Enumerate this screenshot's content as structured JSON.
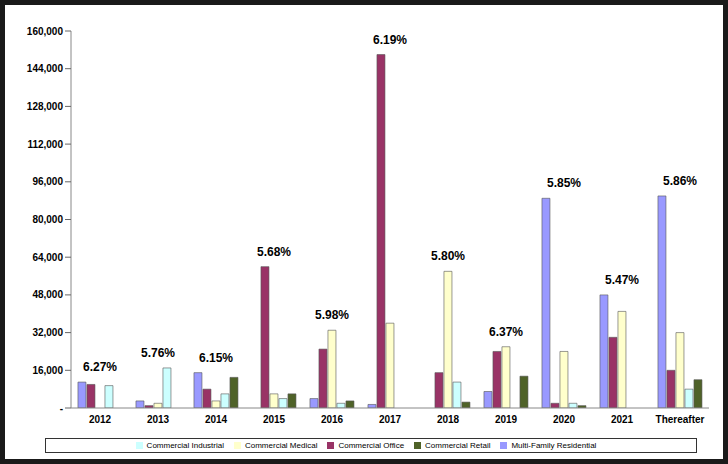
{
  "chart_data": {
    "type": "bar",
    "categories": [
      "2012",
      "2013",
      "2014",
      "2015",
      "2016",
      "2017",
      "2018",
      "2019",
      "2020",
      "2021",
      "Thereafter"
    ],
    "series": [
      {
        "name": "Multi-Family Residential",
        "color": "#9999ff",
        "values": [
          11000,
          3000,
          15000,
          0,
          4000,
          1500,
          0,
          7000,
          89000,
          48000,
          90000
        ]
      },
      {
        "name": "Commercial Office",
        "color": "#993366",
        "values": [
          10000,
          1000,
          8000,
          60000,
          25000,
          150000,
          15000,
          24000,
          2000,
          30000,
          16000
        ]
      },
      {
        "name": "Commercial Medical",
        "color": "#ffffcc",
        "values": [
          0,
          2000,
          3000,
          6000,
          33000,
          36000,
          58000,
          26000,
          24000,
          41000,
          32000
        ]
      },
      {
        "name": "Commercial Industrial",
        "color": "#ccffff",
        "values": [
          9500,
          17000,
          6000,
          4000,
          2000,
          0,
          11000,
          0,
          2000,
          0,
          8000
        ]
      },
      {
        "name": "Commercial Retail",
        "color": "#4f6228",
        "values": [
          0,
          0,
          13000,
          6000,
          3000,
          0,
          2500,
          13500,
          1000,
          0,
          12000
        ]
      }
    ],
    "annotations": [
      "6.27%",
      "5.76%",
      "6.15%",
      "5.68%",
      "5.98%",
      "6.19%",
      "5.80%",
      "6.37%",
      "5.85%",
      "5.47%",
      "5.86%"
    ],
    "ylim": [
      0,
      160000
    ],
    "yticks": [
      {
        "value": 0,
        "label": "-"
      },
      {
        "value": 16000,
        "label": "16,000"
      },
      {
        "value": 32000,
        "label": "32,000"
      },
      {
        "value": 48000,
        "label": "48,000"
      },
      {
        "value": 64000,
        "label": "64,000"
      },
      {
        "value": 80000,
        "label": "80,000"
      },
      {
        "value": 96000,
        "label": "96,000"
      },
      {
        "value": 112000,
        "label": "112,000"
      },
      {
        "value": 128000,
        "label": "128,000"
      },
      {
        "value": 144000,
        "label": "144,000"
      },
      {
        "value": 160000,
        "label": "160,000"
      }
    ],
    "grid": false,
    "legend": "bottom"
  }
}
